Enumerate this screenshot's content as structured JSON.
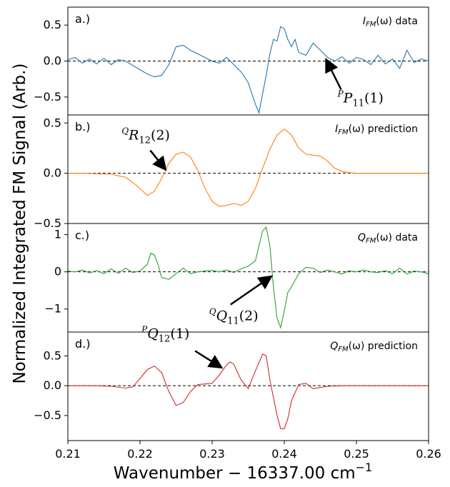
{
  "figure": {
    "ylabel": "Normalized Integrated FM Signal (Arb.)",
    "xlabel": "Wavenumber − 16337.00 cm",
    "xlabel_sup": "−1"
  },
  "chart_data": [
    {
      "type": "line",
      "panel_label": "a.)",
      "legend_text": "I",
      "legend_sub": "FM",
      "legend_tail": "(ω) data",
      "color": "#1f77b4",
      "xlim": [
        0.21,
        0.26
      ],
      "ylim": [
        -0.75,
        0.75
      ],
      "yticks": [
        "0.5",
        "0.0",
        "−0.5"
      ],
      "ytick_values": [
        0.5,
        0.0,
        -0.5
      ],
      "annotation": {
        "pre": "P",
        "main": "P",
        "sub": "11",
        "post": "(1)",
        "x": 0.2459,
        "y": 0.0
      },
      "x": [
        0.21,
        0.211,
        0.212,
        0.213,
        0.214,
        0.215,
        0.216,
        0.217,
        0.218,
        0.219,
        0.22,
        0.221,
        0.222,
        0.223,
        0.224,
        0.225,
        0.226,
        0.227,
        0.228,
        0.229,
        0.23,
        0.231,
        0.232,
        0.233,
        0.234,
        0.235,
        0.2355,
        0.236,
        0.2365,
        0.237,
        0.2375,
        0.238,
        0.2385,
        0.239,
        0.2395,
        0.24,
        0.2405,
        0.241,
        0.2415,
        0.242,
        0.243,
        0.244,
        0.245,
        0.246,
        0.247,
        0.248,
        0.249,
        0.25,
        0.251,
        0.252,
        0.253,
        0.254,
        0.255,
        0.256,
        0.257,
        0.258,
        0.259,
        0.26
      ],
      "y": [
        0.02,
        0.05,
        -0.03,
        0.03,
        -0.04,
        0.04,
        -0.05,
        0.02,
        0.0,
        -0.06,
        -0.12,
        -0.18,
        -0.22,
        -0.2,
        -0.05,
        0.2,
        0.22,
        0.15,
        0.1,
        0.05,
        0.0,
        -0.03,
        0.05,
        -0.05,
        -0.15,
        -0.3,
        -0.45,
        -0.6,
        -0.72,
        -0.45,
        -0.2,
        0.1,
        0.3,
        0.28,
        0.48,
        0.45,
        0.3,
        0.2,
        0.3,
        0.12,
        0.08,
        0.25,
        0.15,
        0.05,
        0.0,
        0.06,
        -0.03,
        0.05,
        0.02,
        -0.05,
        0.08,
        -0.04,
        0.03,
        -0.1,
        0.15,
        -0.02,
        0.03,
        0.0
      ]
    },
    {
      "type": "line",
      "panel_label": "b.)",
      "legend_text": "I",
      "legend_sub": "FM",
      "legend_tail": "(ω) prediction",
      "color": "#ff7f0e",
      "xlim": [
        0.21,
        0.26
      ],
      "ylim": [
        -0.5,
        0.58
      ],
      "yticks": [
        "0.5",
        "0.0",
        "−0.5"
      ],
      "ytick_values": [
        0.5,
        0.0,
        -0.5
      ],
      "annotation": {
        "pre": "Q",
        "main": "R",
        "sub": "12",
        "post": "(2)",
        "x": 0.2234,
        "y": 0.05
      },
      "x": [
        0.21,
        0.212,
        0.214,
        0.216,
        0.218,
        0.2195,
        0.221,
        0.222,
        0.223,
        0.224,
        0.225,
        0.226,
        0.227,
        0.228,
        0.229,
        0.23,
        0.231,
        0.232,
        0.233,
        0.234,
        0.235,
        0.236,
        0.237,
        0.238,
        0.239,
        0.24,
        0.241,
        0.242,
        0.243,
        0.244,
        0.245,
        0.246,
        0.247,
        0.248,
        0.249,
        0.25,
        0.252,
        0.254,
        0.256,
        0.258,
        0.26
      ],
      "y": [
        0.0,
        0.0,
        -0.005,
        -0.01,
        -0.04,
        -0.12,
        -0.22,
        -0.18,
        -0.05,
        0.1,
        0.19,
        0.21,
        0.16,
        0.03,
        -0.15,
        -0.28,
        -0.33,
        -0.32,
        -0.3,
        -0.32,
        -0.28,
        -0.15,
        0.05,
        0.24,
        0.38,
        0.44,
        0.38,
        0.25,
        0.19,
        0.18,
        0.17,
        0.12,
        0.05,
        0.02,
        0.005,
        0.0,
        0.0,
        0.0,
        0.0,
        0.0,
        0.0
      ]
    },
    {
      "type": "line",
      "panel_label": "c.)",
      "legend_text": "Q",
      "legend_sub": "FM",
      "legend_tail": "(ω) data",
      "color": "#2ca02c",
      "xlim": [
        0.21,
        0.26
      ],
      "ylim": [
        -1.62,
        1.3
      ],
      "yticks": [
        "1",
        "0",
        "−1"
      ],
      "ytick_values": [
        1,
        0,
        -1
      ],
      "annotation": {
        "pre": "Q",
        "main": "Q",
        "sub": "11",
        "post": "(2)",
        "x": 0.238,
        "y": -0.15
      },
      "x": [
        0.21,
        0.211,
        0.212,
        0.213,
        0.214,
        0.215,
        0.216,
        0.217,
        0.218,
        0.219,
        0.22,
        0.221,
        0.2215,
        0.222,
        0.2225,
        0.223,
        0.224,
        0.225,
        0.226,
        0.227,
        0.228,
        0.229,
        0.23,
        0.231,
        0.232,
        0.233,
        0.234,
        0.235,
        0.236,
        0.2365,
        0.237,
        0.2375,
        0.238,
        0.2385,
        0.239,
        0.2395,
        0.24,
        0.2405,
        0.241,
        0.242,
        0.243,
        0.244,
        0.245,
        0.246,
        0.247,
        0.248,
        0.249,
        0.25,
        0.251,
        0.252,
        0.253,
        0.254,
        0.255,
        0.256,
        0.257,
        0.258,
        0.259,
        0.26
      ],
      "y": [
        0.02,
        0.0,
        0.05,
        -0.03,
        0.03,
        -0.05,
        0.08,
        -0.04,
        0.1,
        -0.02,
        0.02,
        0.2,
        0.5,
        0.45,
        0.2,
        -0.15,
        -0.2,
        -0.05,
        0.1,
        -0.05,
        0.0,
        0.02,
        0.04,
        0.0,
        0.05,
        -0.02,
        0.08,
        0.15,
        0.3,
        0.7,
        1.1,
        1.2,
        0.7,
        -0.4,
        -1.25,
        -1.5,
        -1.05,
        -0.55,
        -0.4,
        -0.05,
        0.12,
        0.1,
        -0.02,
        0.05,
        0.0,
        -0.06,
        0.03,
        0.0,
        0.05,
        0.0,
        -0.02,
        0.03,
        -0.05,
        0.1,
        -0.06,
        0.02,
        0.0,
        -0.05
      ]
    },
    {
      "type": "line",
      "panel_label": "d.)",
      "legend_text": "Q",
      "legend_sub": "FM",
      "legend_tail": "(ω) prediction",
      "color": "#d62728",
      "xlim": [
        0.21,
        0.26
      ],
      "ylim": [
        -0.92,
        0.9
      ],
      "yticks": [
        "0.5",
        "0.0",
        "−0.5"
      ],
      "ytick_values": [
        0.5,
        0.0,
        -0.5
      ],
      "annotation": {
        "pre": "P",
        "main": "Q",
        "sub": "12",
        "post": "(1)",
        "x": 0.2311,
        "y": 0.32
      },
      "x": [
        0.21,
        0.212,
        0.214,
        0.216,
        0.218,
        0.219,
        0.22,
        0.221,
        0.222,
        0.223,
        0.224,
        0.225,
        0.226,
        0.227,
        0.228,
        0.229,
        0.23,
        0.231,
        0.232,
        0.2325,
        0.233,
        0.234,
        0.235,
        0.236,
        0.237,
        0.2375,
        0.238,
        0.239,
        0.2395,
        0.24,
        0.2405,
        0.241,
        0.242,
        0.243,
        0.244,
        0.245,
        0.246,
        0.248,
        0.25,
        0.255,
        0.26
      ],
      "y": [
        0.0,
        0.0,
        0.0,
        -0.01,
        -0.04,
        -0.02,
        0.12,
        0.27,
        0.33,
        0.22,
        -0.1,
        -0.33,
        -0.28,
        -0.1,
        0.02,
        0.03,
        0.04,
        0.18,
        0.35,
        0.4,
        0.36,
        0.1,
        -0.05,
        0.25,
        0.53,
        0.5,
        0.1,
        -0.5,
        -0.72,
        -0.72,
        -0.55,
        -0.25,
        0.02,
        0.04,
        -0.05,
        -0.03,
        -0.01,
        0.0,
        0.0,
        0.0,
        0.0
      ]
    }
  ],
  "xaxis": {
    "xlim": [
      0.21,
      0.26
    ],
    "ticks": [
      "0.21",
      "0.22",
      "0.23",
      "0.24",
      "0.25",
      "0.26"
    ],
    "tick_values": [
      0.21,
      0.22,
      0.23,
      0.24,
      0.25,
      0.26
    ]
  }
}
